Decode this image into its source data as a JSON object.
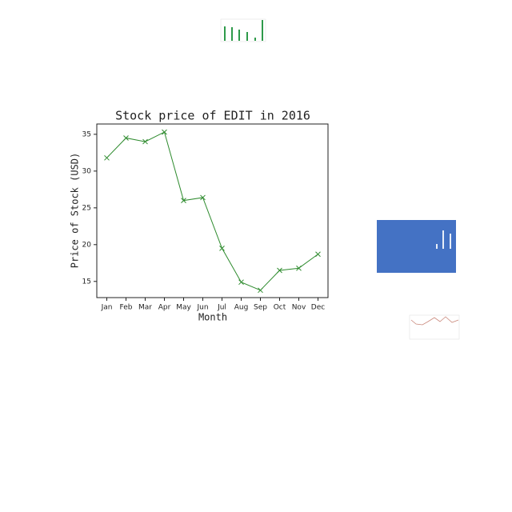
{
  "chart_data": {
    "type": "line",
    "title": "Stock price of EDIT in 2016",
    "x_label": "Month",
    "y_label": "Price of Stock (USD)",
    "categories": [
      "Jan",
      "Feb",
      "Mar",
      "Apr",
      "May",
      "Jun",
      "Jul",
      "Aug",
      "Sep",
      "Oct",
      "Nov",
      "Dec"
    ],
    "series": [
      {
        "name": "EDIT",
        "color": "#2e8b2e",
        "values": [
          31.8,
          34.5,
          34.0,
          35.3,
          26.0,
          26.4,
          19.5,
          14.9,
          13.8,
          16.5,
          16.8,
          18.7
        ]
      }
    ],
    "ylim": [
      12.8,
      36.4
    ],
    "yticks": [
      15,
      20,
      25,
      30,
      35
    ],
    "marker": "x"
  }
}
